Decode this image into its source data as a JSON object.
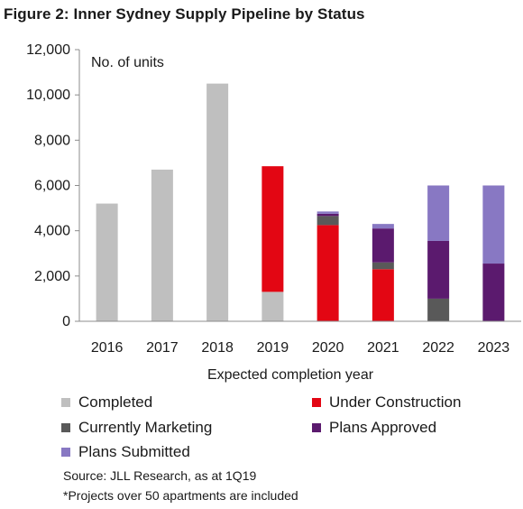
{
  "chart_data": {
    "type": "bar",
    "stacked": true,
    "title": "Figure 2: Inner Sydney Supply Pipeline by Status",
    "ylabel": "No. of units",
    "xlabel": "Expected completion year",
    "categories": [
      "2016",
      "2017",
      "2018",
      "2019",
      "2020",
      "2021",
      "2022",
      "2023"
    ],
    "ylim": [
      0,
      12000
    ],
    "yticks": [
      "0",
      "2,000",
      "4,000",
      "6,000",
      "8,000",
      "10,000",
      "12,000"
    ],
    "ytick_values": [
      0,
      2000,
      4000,
      6000,
      8000,
      10000,
      12000
    ],
    "grid": false,
    "legend_position": "bottom",
    "series": [
      {
        "name": "Completed",
        "color": "#bfbfbf",
        "values": [
          5200,
          6700,
          10500,
          1300,
          0,
          0,
          0,
          0
        ]
      },
      {
        "name": "Under Construction",
        "color": "#e30613",
        "values": [
          0,
          0,
          0,
          5550,
          4250,
          2300,
          0,
          0
        ]
      },
      {
        "name": "Currently Marketing",
        "color": "#595959",
        "values": [
          0,
          0,
          0,
          0,
          400,
          300,
          1000,
          0
        ]
      },
      {
        "name": "Plans Approved",
        "color": "#5b1a6e",
        "values": [
          0,
          0,
          0,
          0,
          100,
          1500,
          2550,
          2550
        ]
      },
      {
        "name": "Plans Submitted",
        "color": "#8878c3",
        "values": [
          0,
          0,
          0,
          0,
          100,
          200,
          2450,
          3450
        ]
      }
    ]
  },
  "notes": {
    "source": "Source:  JLL Research, as at 1Q19",
    "footnote": "*Projects  over 50 apartments  are included"
  }
}
